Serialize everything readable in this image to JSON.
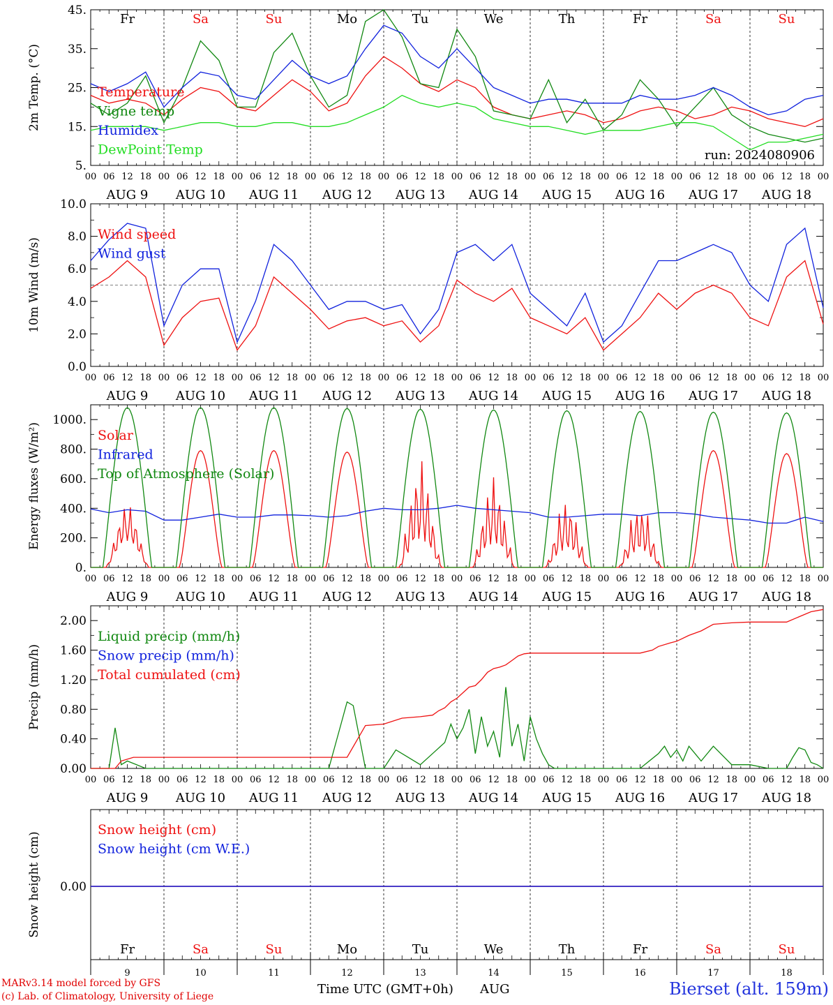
{
  "days": [
    "Fr",
    "Sa",
    "Su",
    "Mo",
    "Tu",
    "We",
    "Th",
    "Fr",
    "Sa",
    "Su"
  ],
  "weekend_days": [
    1,
    2,
    8,
    9
  ],
  "hour_ticks": [
    "00",
    "06",
    "12",
    "18"
  ],
  "month": "AUG",
  "dates": [
    "9",
    "10",
    "11",
    "12",
    "13",
    "14",
    "15",
    "16",
    "17",
    "18"
  ],
  "date_labels": [
    "AUG  9",
    "AUG 10",
    "AUG 11",
    "AUG 12",
    "AUG 13",
    "AUG 14",
    "AUG 15",
    "AUG 16",
    "AUG 17",
    "AUG 18"
  ],
  "bottom_axis_title": "Time UTC (GMT+0h)",
  "bottom_axis_month": "AUG",
  "credits": [
    "MARv3.14 model forced by GFS",
    "(c) Lab. of Climatology, University of Liege"
  ],
  "site_label": "Bierset (alt. 159m)",
  "run_label": "run: 2024080906",
  "colors": {
    "red": "#ee1111",
    "green": "#118811",
    "blue": "#1122dd",
    "lightgreen": "#22dd22",
    "purple": "#8822aa"
  },
  "chart_data": [
    {
      "type": "line",
      "ylabel": "2m Temp. (°C)",
      "ylim": [
        5,
        45
      ],
      "yticks": [
        "5.",
        "15.",
        "25.",
        "35.",
        "45."
      ],
      "x_unit": "hours since Aug 9 00 UTC",
      "series": [
        {
          "name": "Temperature",
          "color": "#ee1111",
          "x": [
            0,
            6,
            12,
            18,
            24,
            30,
            36,
            42,
            48,
            54,
            60,
            66,
            72,
            78,
            84,
            90,
            96,
            102,
            108,
            114,
            120,
            126,
            132,
            138,
            144,
            150,
            156,
            162,
            168,
            174,
            180,
            186,
            192,
            198,
            204,
            210,
            216,
            222,
            228,
            234,
            240
          ],
          "values": [
            23,
            21,
            22,
            21,
            18,
            22,
            25,
            24,
            20,
            19,
            23,
            27,
            24,
            19,
            21,
            28,
            33,
            30,
            26,
            24,
            27,
            25,
            20,
            18,
            17,
            18,
            19,
            18,
            16,
            17,
            19,
            20,
            19,
            17,
            18,
            20,
            19,
            17,
            16,
            15,
            17
          ]
        },
        {
          "name": "Vigne temp",
          "color": "#118811",
          "x": [
            0,
            6,
            12,
            18,
            24,
            30,
            36,
            42,
            48,
            54,
            60,
            66,
            72,
            78,
            84,
            90,
            96,
            102,
            108,
            114,
            120,
            126,
            132,
            138,
            144,
            150,
            156,
            162,
            168,
            174,
            180,
            186,
            192,
            198,
            204,
            210,
            216,
            222,
            228,
            234,
            240
          ],
          "values": [
            21,
            18,
            21,
            28,
            16,
            25,
            37,
            32,
            20,
            20,
            34,
            39,
            28,
            20,
            23,
            42,
            45,
            38,
            26,
            25,
            40,
            33,
            19,
            18,
            17,
            27,
            16,
            22,
            14,
            18,
            27,
            22,
            15,
            20,
            25,
            18,
            15,
            13,
            12,
            11,
            12
          ]
        },
        {
          "name": "Humidex",
          "color": "#1122dd",
          "x": [
            0,
            6,
            12,
            18,
            24,
            30,
            36,
            42,
            48,
            54,
            60,
            66,
            72,
            78,
            84,
            90,
            96,
            102,
            108,
            114,
            120,
            126,
            132,
            138,
            144,
            150,
            156,
            162,
            168,
            174,
            180,
            186,
            192,
            198,
            204,
            210,
            216,
            222,
            228,
            234,
            240
          ],
          "values": [
            26,
            24,
            26,
            29,
            20,
            25,
            29,
            28,
            23,
            22,
            27,
            32,
            28,
            26,
            28,
            35,
            41,
            39,
            33,
            30,
            35,
            30,
            25,
            23,
            21,
            22,
            22,
            21,
            21,
            21,
            23,
            22,
            22,
            23,
            25,
            23,
            20,
            18,
            19,
            22,
            23
          ]
        },
        {
          "name": "DewPoint Temp",
          "color": "#22dd22",
          "x": [
            0,
            6,
            12,
            18,
            24,
            30,
            36,
            42,
            48,
            54,
            60,
            66,
            72,
            78,
            84,
            90,
            96,
            102,
            108,
            114,
            120,
            126,
            132,
            138,
            144,
            150,
            156,
            162,
            168,
            174,
            180,
            186,
            192,
            198,
            204,
            210,
            216,
            222,
            228,
            234,
            240
          ],
          "values": [
            14,
            15,
            15,
            15,
            14,
            15,
            16,
            16,
            15,
            15,
            16,
            16,
            15,
            15,
            16,
            18,
            20,
            23,
            21,
            20,
            21,
            20,
            17,
            16,
            15,
            15,
            14,
            13,
            14,
            14,
            14,
            15,
            16,
            16,
            15,
            12,
            9,
            11,
            11,
            12,
            13
          ]
        }
      ]
    },
    {
      "type": "line",
      "ylabel": "10m Wind (m/s)",
      "ylim": [
        0,
        10
      ],
      "yticks": [
        "0.0",
        "2.0",
        "4.0",
        "6.0",
        "8.0",
        "10.0"
      ],
      "reference_line": 5,
      "series": [
        {
          "name": "Wind speed",
          "color": "#ee1111",
          "x": [
            0,
            6,
            12,
            18,
            24,
            30,
            36,
            42,
            48,
            54,
            60,
            66,
            72,
            78,
            84,
            90,
            96,
            102,
            108,
            114,
            120,
            126,
            132,
            138,
            144,
            150,
            156,
            162,
            168,
            174,
            180,
            186,
            192,
            198,
            204,
            210,
            216,
            222,
            228,
            234,
            240
          ],
          "values": [
            4.8,
            5.5,
            6.5,
            5.5,
            1.3,
            3.0,
            4.0,
            4.2,
            1.0,
            2.5,
            5.5,
            4.5,
            3.5,
            2.3,
            2.8,
            3.0,
            2.5,
            2.8,
            1.5,
            2.5,
            5.3,
            4.5,
            4.0,
            4.8,
            3.0,
            2.5,
            2.0,
            3.0,
            1.0,
            2.0,
            3.0,
            4.5,
            3.5,
            4.5,
            5.0,
            4.5,
            3.0,
            2.5,
            5.5,
            6.5,
            2.6
          ]
        },
        {
          "name": "Wind gust",
          "color": "#1122dd",
          "x": [
            0,
            6,
            12,
            18,
            24,
            30,
            36,
            42,
            48,
            54,
            60,
            66,
            72,
            78,
            84,
            90,
            96,
            102,
            108,
            114,
            120,
            126,
            132,
            138,
            144,
            150,
            156,
            162,
            168,
            174,
            180,
            186,
            192,
            198,
            204,
            210,
            216,
            222,
            228,
            234,
            240
          ],
          "values": [
            6.5,
            7.8,
            8.8,
            8.5,
            2.5,
            5.0,
            6.0,
            6.0,
            1.5,
            4.0,
            7.5,
            6.5,
            5.0,
            3.5,
            4.0,
            4.0,
            3.5,
            3.8,
            2.0,
            3.5,
            7.0,
            7.5,
            6.5,
            7.5,
            4.5,
            3.5,
            2.5,
            4.5,
            1.5,
            2.5,
            4.5,
            6.5,
            6.5,
            7.0,
            7.5,
            7.0,
            5.0,
            4.0,
            7.5,
            8.5,
            3.6
          ]
        }
      ]
    },
    {
      "type": "line",
      "ylabel": "Energy fluxes (W/m²)",
      "ylim": [
        0,
        1100
      ],
      "yticks": [
        "0.",
        "200.",
        "400.",
        "600.",
        "800.",
        "1000."
      ],
      "series": [
        {
          "name": "Solar",
          "color": "#ee1111",
          "peaks": [
            450,
            790,
            790,
            780,
            750,
            640,
            490,
            460,
            790,
            770
          ]
        },
        {
          "name": "Infrared",
          "color": "#1122dd",
          "x": [
            0,
            6,
            12,
            18,
            24,
            30,
            36,
            42,
            48,
            54,
            60,
            66,
            72,
            78,
            84,
            90,
            96,
            102,
            108,
            114,
            120,
            126,
            132,
            138,
            144,
            150,
            156,
            162,
            168,
            174,
            180,
            186,
            192,
            198,
            204,
            210,
            216,
            222,
            228,
            234,
            240
          ],
          "values": [
            395,
            370,
            390,
            380,
            320,
            320,
            340,
            360,
            340,
            340,
            355,
            355,
            350,
            340,
            350,
            380,
            400,
            390,
            390,
            400,
            420,
            400,
            390,
            380,
            370,
            340,
            340,
            350,
            360,
            360,
            350,
            370,
            370,
            360,
            340,
            330,
            320,
            300,
            300,
            340,
            310
          ]
        },
        {
          "name": "Top of Atmosphere (Solar)",
          "color": "#118811",
          "peaks": [
            1080,
            1080,
            1080,
            1075,
            1070,
            1065,
            1060,
            1055,
            1050,
            1045
          ]
        }
      ]
    },
    {
      "type": "line",
      "ylabel": "Precip (mm/h)",
      "ylim": [
        0,
        2.2
      ],
      "yticks": [
        "0.00",
        "0.40",
        "0.80",
        "1.20",
        "1.60",
        "2.00"
      ],
      "series": [
        {
          "name": "Liquid precip (mm/h)",
          "color": "#118811",
          "x": [
            0,
            6,
            8,
            10,
            12,
            18,
            72,
            78,
            82,
            84,
            86,
            90,
            96,
            100,
            104,
            108,
            112,
            116,
            118,
            120,
            122,
            124,
            126,
            128,
            130,
            132,
            134,
            136,
            138,
            140,
            142,
            144,
            146,
            148,
            150,
            152,
            156,
            180,
            186,
            188,
            190,
            192,
            194,
            196,
            198,
            200,
            204,
            210,
            216,
            222,
            228,
            230,
            232,
            234,
            236,
            238,
            240
          ],
          "values": [
            0,
            0,
            0.55,
            0.05,
            0.1,
            0,
            0,
            0,
            0.6,
            0.9,
            0.85,
            0,
            0,
            0.25,
            0.15,
            0.05,
            0.2,
            0.35,
            0.6,
            0.4,
            0.55,
            0.8,
            0.2,
            0.7,
            0.3,
            0.5,
            0.15,
            1.1,
            0.3,
            0.6,
            0.1,
            0.7,
            0.4,
            0.2,
            0.05,
            0,
            0,
            0,
            0.2,
            0.3,
            0.15,
            0.25,
            0.1,
            0.3,
            0.2,
            0.1,
            0.3,
            0.05,
            0.05,
            0,
            0,
            0.15,
            0.28,
            0.25,
            0.08,
            0.05,
            0
          ]
        },
        {
          "name": "Snow precip (mm/h)",
          "color": "#1122dd",
          "values": []
        },
        {
          "name": "Total cumulated (cm)",
          "color": "#ee1111",
          "x": [
            0,
            8,
            10,
            14,
            24,
            72,
            84,
            90,
            96,
            102,
            108,
            112,
            114,
            116,
            118,
            120,
            124,
            126,
            128,
            130,
            132,
            134,
            136,
            138,
            140,
            142,
            144,
            150,
            156,
            180,
            184,
            186,
            190,
            192,
            196,
            200,
            204,
            210,
            216,
            228,
            232,
            236,
            240
          ],
          "values": [
            0,
            0,
            0.1,
            0.15,
            0.15,
            0.15,
            0.15,
            0.58,
            0.6,
            0.68,
            0.7,
            0.72,
            0.78,
            0.82,
            0.9,
            0.95,
            1.1,
            1.12,
            1.2,
            1.3,
            1.35,
            1.37,
            1.4,
            1.46,
            1.52,
            1.55,
            1.56,
            1.56,
            1.56,
            1.56,
            1.6,
            1.65,
            1.7,
            1.72,
            1.8,
            1.86,
            1.95,
            1.97,
            1.98,
            1.98,
            2.05,
            2.12,
            2.15
          ]
        }
      ]
    },
    {
      "type": "line",
      "ylabel": "Snow height (cm)",
      "yticks": [
        "0.00"
      ],
      "series": [
        {
          "name": "Snow height (cm)",
          "color": "#ee1111",
          "x": [
            0,
            240
          ],
          "values": [
            0,
            0
          ]
        },
        {
          "name": "Snow height (cm W.E.)",
          "color": "#1122dd",
          "x": [
            0,
            240
          ],
          "values": [
            0,
            0
          ]
        }
      ]
    }
  ]
}
